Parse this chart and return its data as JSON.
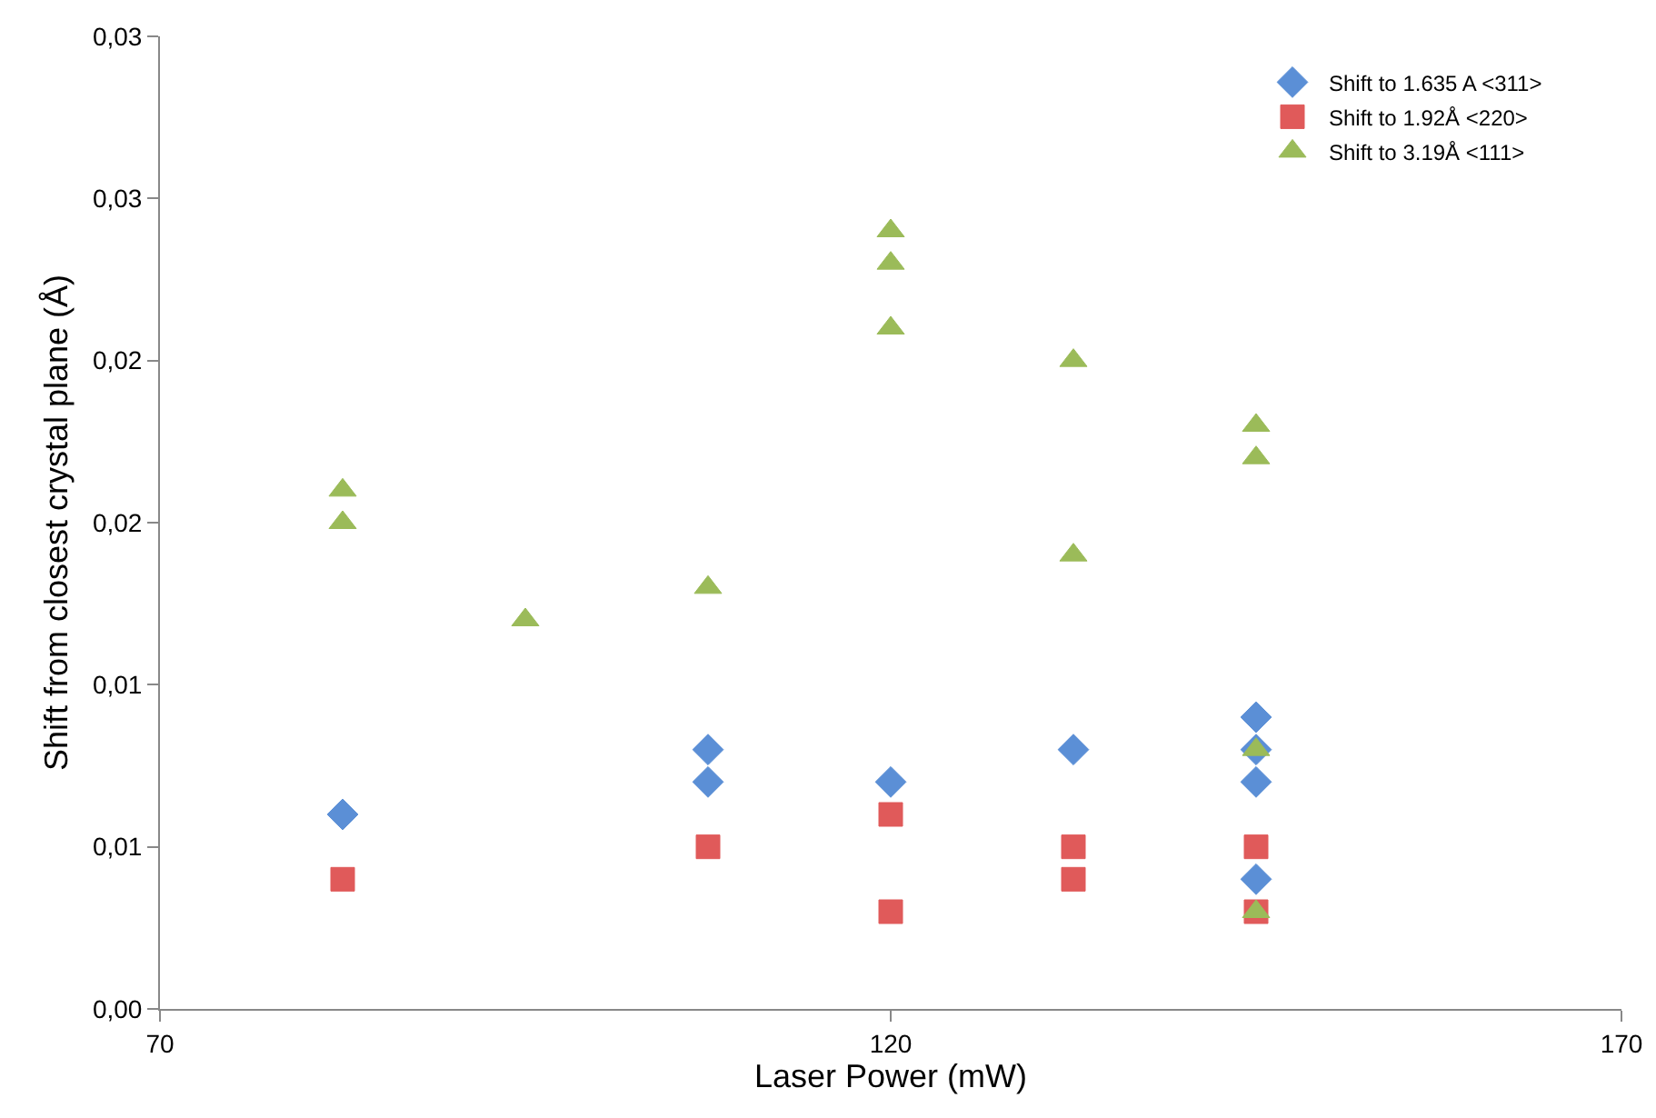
{
  "chart_data": {
    "type": "scatter",
    "xlabel": "Laser Power (mW)",
    "ylabel": "Shift from closest crystal plane (Å)",
    "xlim": [
      70,
      170
    ],
    "xticks": [
      70,
      120,
      170
    ],
    "ylim": [
      0,
      0.03
    ],
    "yticks": [
      {
        "value": 0,
        "label": "0,00"
      },
      {
        "value": 0.005,
        "label": "0,01"
      },
      {
        "value": 0.01,
        "label": "0,01"
      },
      {
        "value": 0.015,
        "label": "0,02"
      },
      {
        "value": 0.02,
        "label": "0,02"
      },
      {
        "value": 0.025,
        "label": "0,03"
      },
      {
        "value": 0.03,
        "label": "0,03"
      }
    ],
    "grid": false,
    "legend": "top right",
    "series": [
      {
        "name": "Shift to 1.635 A <311>",
        "color": "#5b8fd6",
        "marker": "diamond",
        "x": [
          82.5,
          107.5,
          107.5,
          120,
          132.5,
          145,
          145,
          145,
          145
        ],
        "values": [
          0.006,
          0.008,
          0.007,
          0.007,
          0.008,
          0.009,
          0.008,
          0.007,
          0.004
        ]
      },
      {
        "name": "Shift to 1.92Å <220>",
        "color": "#e05a5a",
        "marker": "square",
        "x": [
          82.5,
          107.5,
          120,
          120,
          132.5,
          132.5,
          145,
          145
        ],
        "values": [
          0.004,
          0.005,
          0.006,
          0.003,
          0.005,
          0.004,
          0.005,
          0.003
        ]
      },
      {
        "name": "Shift to 3.19Å <111>",
        "color": "#9bbb59",
        "marker": "triangle",
        "x": [
          82.5,
          82.5,
          95,
          107.5,
          120,
          120,
          120,
          132.5,
          132.5,
          145,
          145,
          145,
          145
        ],
        "values": [
          0.016,
          0.015,
          0.012,
          0.013,
          0.024,
          0.023,
          0.021,
          0.02,
          0.014,
          0.018,
          0.017,
          0.008,
          0.003
        ]
      }
    ]
  }
}
